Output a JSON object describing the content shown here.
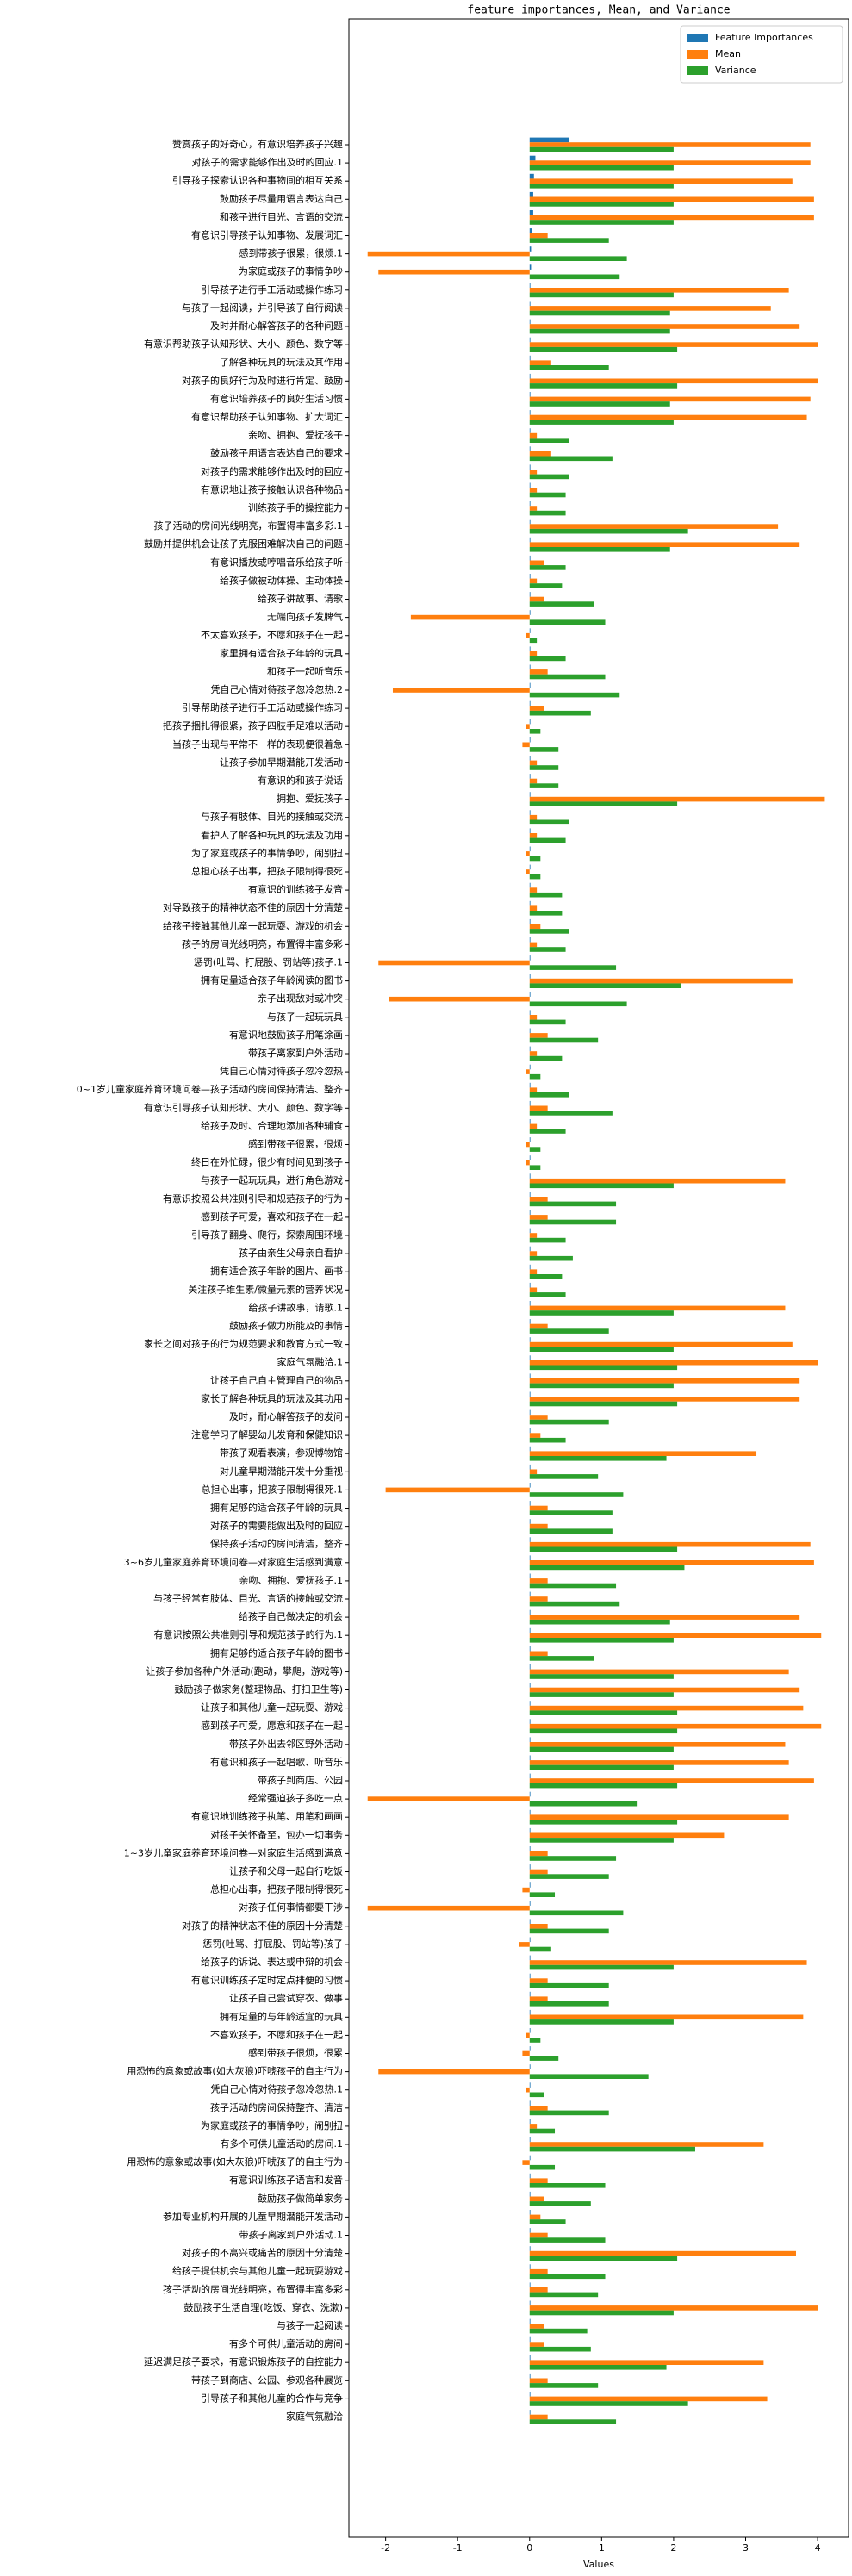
{
  "chart_data": {
    "type": "barh",
    "title": "feature_importances, Mean, and Variance",
    "x_label": "Values",
    "xlim": [
      -2.51,
      4.43
    ],
    "xticks": [
      -2,
      -1,
      0,
      1,
      2,
      3,
      4
    ],
    "legend": "upper right",
    "categories": [
      "赞赏孩子的好奇心，有意识培养孩子兴趣",
      "对孩子的需求能够作出及时的回应.1",
      "引导孩子探索认识各种事物间的相互关系",
      "鼓励孩子尽量用语言表达自己",
      "和孩子进行目光、言语的交流",
      "有意识引导孩子认知事物、发展词汇",
      "感到带孩子很累，很烦.1",
      "为家庭或孩子的事情争吵",
      "引导孩子进行手工活动或操作练习",
      "与孩子一起阅读，并引导孩子自行阅读",
      "及时并耐心解答孩子的各种问题",
      "有意识帮助孩子认知形状、大小、颜色、数字等",
      "了解各种玩具的玩法及其作用",
      "对孩子的良好行为及时进行肯定、鼓励",
      "有意识培养孩子的良好生活习惯",
      "有意识帮助孩子认知事物、扩大词汇",
      "亲吻、拥抱、爱抚孩子",
      "鼓励孩子用语言表达自己的要求",
      "对孩子的需求能够作出及时的回应",
      "有意识地让孩子接触认识各种物品",
      "训练孩子手的操控能力",
      "孩子活动的房间光线明亮，布置得丰富多彩.1",
      "鼓励并提供机会让孩子克服困难解决自己的问题",
      "有意识播放或哼唱音乐给孩子听",
      "给孩子做被动体操、主动体操",
      "给孩子讲故事、请歌",
      "无端向孩子发脾气",
      "不太喜欢孩子，不愿和孩子在一起",
      "家里拥有适合孩子年龄的玩具",
      "和孩子一起听音乐",
      "凭自己心情对待孩子忽冷忽热.2",
      "引导帮助孩子进行手工活动或操作练习",
      "把孩子捆扎得很紧，孩子四肢手足难以活动",
      "当孩子出现与平常不一样的表现便很着急",
      "让孩子参加早期潜能开发活动",
      "有意识的和孩子说话",
      "拥抱、爱抚孩子",
      "与孩子有肢体、目光的接触或交流",
      "看护人了解各种玩具的玩法及功用",
      "为了家庭或孩子的事情争吵，闹别扭",
      "总担心孩子出事，把孩子限制得很死",
      "有意识的训练孩子发音",
      "对导致孩子的精神状态不佳的原因十分清楚",
      "给孩子接触其他儿童一起玩耍、游戏的机会",
      "孩子的房间光线明亮，布置得丰富多彩",
      "惩罚(吐骂、打屁股、罚站等)孩子.1",
      "拥有足量适合孩子年龄阅读的图书",
      "亲子出现敌对或冲突",
      "与孩子一起玩玩具",
      "有意识地鼓励孩子用笔涂画",
      "带孩子离家到户外活动",
      "凭自己心情对待孩子忽冷忽热",
      "0~1岁儿童家庭养育环境问卷—孩子活动的房间保持清洁、整齐",
      "有意识引导孩子认知形状、大小、颜色、数字等",
      "给孩子及时、合理地添加各种辅食",
      "感到带孩子很累，很烦",
      "终日在外忙碌，很少有时间见到孩子",
      "与孩子一起玩玩具，进行角色游戏",
      "有意识按照公共准则引导和规范孩子的行为",
      "感到孩子可爱，喜欢和孩子在一起",
      "引导孩子翻身、爬行，探索周围环境",
      "孩子由亲生父母亲自看护",
      "拥有适合孩子年龄的图片、画书",
      "关注孩子维生素/微量元素的营养状况",
      "给孩子讲故事，请歌.1",
      "鼓励孩子做力所能及的事情",
      "家长之间对孩子的行为规范要求和教育方式一致",
      "家庭气氛融洽.1",
      "让孩子自己自主管理自己的物品",
      "家长了解各种玩具的玩法及其功用",
      "及时，耐心解答孩子的发问",
      "注意学习了解婴幼儿发育和保健知识",
      "带孩子观看表演，参观博物馆",
      "对儿童早期潜能开发十分重视",
      "总担心出事，把孩子限制得很死.1",
      "拥有足够的适合孩子年龄的玩具",
      "对孩子的需要能做出及时的回应",
      "保持孩子活动的房间清洁，整齐",
      "3~6岁儿童家庭养育环境问卷—对家庭生活感到满意",
      "亲吻、拥抱、爱抚孩子.1",
      "与孩子经常有肢体、目光、言语的接触或交流",
      "给孩子自己做决定的机会",
      "有意识按照公共准则引导和规范孩子的行为.1",
      "拥有足够的适合孩子年龄的图书",
      "让孩子参加各种户外活动(跑动，攀爬，游戏等)",
      "鼓励孩子做家务(整理物品、打扫卫生等)",
      "让孩子和其他儿童一起玩耍、游戏",
      "感到孩子可爱，愿意和孩子在一起",
      "带孩子外出去邻区野外活动",
      "有意识和孩子一起唱歌、听音乐",
      "带孩子到商店、公园",
      "经常强迫孩子多吃一点",
      "有意识地训练孩子执笔、用笔和画画",
      "对孩子关怀备至，包办一切事务",
      "1~3岁儿童家庭养育环境问卷—对家庭生活感到满意",
      "让孩子和父母一起自行吃饭",
      "总担心出事，把孩子限制得很死",
      "对孩子任何事情都要干涉",
      "对孩子的精神状态不佳的原因十分清楚",
      "惩罚(吐骂、打屁股、罚站等)孩子",
      "给孩子的诉说、表达或申辩的机会",
      "有意识训练孩子定时定点排便的习惯",
      "让孩子自己尝试穿衣、做事",
      "拥有足量的与年龄适宜的玩具",
      "不喜欢孩子，不愿和孩子在一起",
      "感到带孩子很烦，很累",
      "用恐怖的意象或故事(如大灰狼)吓唬孩子的自主行为",
      "凭自己心情对待孩子忽冷忽热.1",
      "孩子活动的房间保持整齐、清洁",
      "为家庭或孩子的事情争吵，闹别扭",
      "有多个可供儿童活动的房间.1",
      "用恐怖的意象或故事(如大灰狼)吓唬孩子的自主行为",
      "有意识训练孩子语言和发音",
      "鼓励孩子做简单家务",
      "参加专业机构开展的儿童早期潜能开发活动",
      "带孩子离家到户外活动.1",
      "对孩子的不高兴或痛苦的原因十分清楚",
      "给孩子提供机会与其他儿童一起玩耍游戏",
      "孩子活动的房间光线明亮，布置得丰富多彩",
      "鼓励孩子生活自理(吃饭、穿衣、洗漱)",
      "与孩子一起阅读",
      "有多个可供儿童活动的房间",
      "延迟满足孩子要求，有意识锻炼孩子的自控能力",
      "带孩子到商店、公园、参观各种展览",
      "引导孩子和其他儿童的合作与竞争",
      "家庭气氛融洽"
    ],
    "series": [
      {
        "name": "Feature Importances",
        "color": "#1f77b4",
        "values": [
          0.55,
          0.08,
          0.06,
          0.05,
          0.05,
          0.03,
          0.02,
          0.02,
          0.01,
          0.01,
          0.01,
          0.01,
          0.01,
          0.01,
          0.01,
          0.01,
          0.01,
          0.01,
          0.01,
          0.01,
          0.01,
          0.01,
          0.01,
          0.01,
          0.01,
          0.01,
          0.01,
          0.01,
          0.01,
          0.01,
          0.01,
          0.01,
          0.01,
          0.01,
          0.01,
          0.01,
          0.01,
          0.01,
          0.01,
          0.01,
          0.01,
          0.01,
          0.01,
          0.01,
          0.01,
          0.01,
          0.01,
          0.01,
          0.01,
          0.01,
          0.01,
          0.01,
          0.01,
          0.01,
          0.01,
          0.01,
          0.01,
          0.01,
          0.01,
          0.01,
          0.01,
          0.01,
          0.01,
          0.01,
          0.01,
          0.01,
          0.01,
          0.01,
          0.01,
          0.01,
          0.01,
          0.01,
          0.01,
          0.01,
          0.01,
          0.01,
          0.01,
          0.01,
          0.01,
          0.01,
          0.01,
          0.01,
          0.01,
          0.01,
          0.01,
          0.01,
          0.01,
          0.01,
          0.01,
          0.01,
          0.01,
          0.01,
          0.01,
          0.01,
          0.01,
          0.01,
          0.01,
          0.01,
          0.01,
          0.01,
          0.01,
          0.01,
          0.01,
          0.01,
          0.01,
          0.01,
          0.01,
          0.01,
          0.01,
          0.01,
          0.01,
          0.01,
          0.01,
          0.01,
          0.01,
          0.01,
          0.01,
          0.01,
          0.01,
          0.01,
          0.01,
          0.01,
          0.01,
          0.01,
          0.01,
          0.01
        ]
      },
      {
        "name": "Mean",
        "color": "#ff7f0e",
        "values": [
          3.9,
          3.9,
          3.65,
          3.95,
          3.95,
          0.25,
          -2.25,
          -2.1,
          3.6,
          3.35,
          3.75,
          4.0,
          0.3,
          4.0,
          3.9,
          3.85,
          0.1,
          0.3,
          0.1,
          0.1,
          0.1,
          3.45,
          3.75,
          0.2,
          0.1,
          0.2,
          -1.65,
          -0.05,
          0.1,
          0.25,
          -1.9,
          0.2,
          -0.05,
          -0.1,
          0.1,
          0.1,
          4.1,
          0.1,
          0.1,
          -0.05,
          -0.05,
          0.1,
          0.1,
          0.15,
          0.1,
          -2.1,
          3.65,
          -1.95,
          0.1,
          0.25,
          0.1,
          -0.05,
          0.1,
          0.25,
          0.1,
          -0.05,
          -0.05,
          3.55,
          0.25,
          0.25,
          0.1,
          0.1,
          0.1,
          0.1,
          3.55,
          0.25,
          3.65,
          4.0,
          3.75,
          3.75,
          0.25,
          0.15,
          3.15,
          0.1,
          -2.0,
          0.25,
          0.25,
          3.9,
          3.95,
          0.25,
          0.25,
          3.75,
          4.05,
          0.25,
          3.6,
          3.75,
          3.8,
          4.05,
          3.55,
          3.6,
          3.95,
          -2.25,
          3.6,
          2.7,
          0.25,
          0.25,
          -0.1,
          -2.25,
          0.25,
          -0.15,
          3.85,
          0.25,
          0.25,
          3.8,
          -0.05,
          -0.1,
          -2.1,
          -0.05,
          0.25,
          0.1,
          3.25,
          -0.1,
          0.25,
          0.2,
          0.15,
          0.25,
          3.7,
          0.25,
          0.25,
          4.0,
          0.2,
          0.2,
          3.25,
          0.25,
          3.3,
          0.25
        ]
      },
      {
        "name": "Variance",
        "color": "#2ca02c",
        "values": [
          2.0,
          2.0,
          2.0,
          2.0,
          2.0,
          1.1,
          1.35,
          1.25,
          2.0,
          1.95,
          1.95,
          2.05,
          1.1,
          2.05,
          1.95,
          2.0,
          0.55,
          1.15,
          0.55,
          0.5,
          0.5,
          2.2,
          1.95,
          0.5,
          0.45,
          0.9,
          1.05,
          0.1,
          0.5,
          1.05,
          1.25,
          0.85,
          0.15,
          0.4,
          0.4,
          0.4,
          2.05,
          0.55,
          0.5,
          0.15,
          0.15,
          0.45,
          0.45,
          0.55,
          0.5,
          1.2,
          2.1,
          1.35,
          0.5,
          0.95,
          0.45,
          0.15,
          0.55,
          1.15,
          0.5,
          0.15,
          0.15,
          2.0,
          1.2,
          1.2,
          0.5,
          0.6,
          0.45,
          0.5,
          2.0,
          1.1,
          2.0,
          2.05,
          2.0,
          2.05,
          1.1,
          0.5,
          1.9,
          0.95,
          1.3,
          1.15,
          1.15,
          2.05,
          2.15,
          1.2,
          1.25,
          1.95,
          2.0,
          0.9,
          2.0,
          2.0,
          2.05,
          2.05,
          2.0,
          2.0,
          2.05,
          1.5,
          2.05,
          2.0,
          1.2,
          1.1,
          0.35,
          1.3,
          1.1,
          0.3,
          2.0,
          1.1,
          1.1,
          2.0,
          0.15,
          0.4,
          1.65,
          0.2,
          1.1,
          0.35,
          2.3,
          0.35,
          1.05,
          0.85,
          0.5,
          1.05,
          2.05,
          1.05,
          0.95,
          2.0,
          0.8,
          0.85,
          1.9,
          0.95,
          2.2,
          1.2
        ]
      }
    ]
  }
}
